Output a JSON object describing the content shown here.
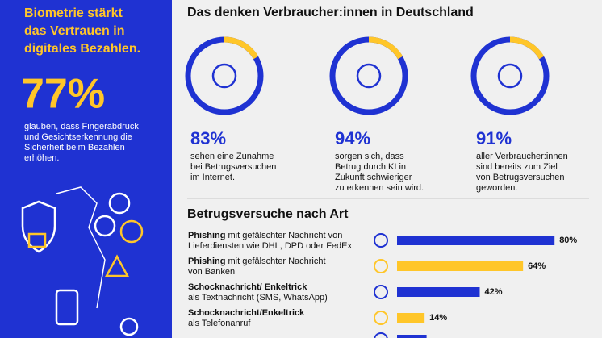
{
  "sidebar": {
    "headline": [
      "Biometrie stärkt",
      "das Vertrauen in",
      "digitales Bezahlen."
    ],
    "stat": "77%",
    "text": [
      "glauben, dass Fingerabdruck",
      "und Gesichtserkennung die",
      "Sicherheit beim Bezahlen",
      "erhöhen."
    ]
  },
  "survey": {
    "title": "Das denken Verbraucher:innen in Deutschland",
    "items": [
      {
        "stat": "83%",
        "text": [
          "sehen eine Zunahme",
          "bei Betrugsversuchen",
          "im Internet."
        ]
      },
      {
        "stat": "94%",
        "text": [
          "sorgen sich, dass",
          "Betrug durch KI in",
          "Zukunft schwieriger",
          "zu erkennen sein wird."
        ]
      },
      {
        "stat": "91%",
        "text": [
          "aller Verbraucher:innen",
          "sind bereits zum Ziel",
          "von Betrugsversuchen",
          "geworden."
        ]
      }
    ]
  },
  "chart_data": {
    "type": "bar",
    "title": "Betrugsversuche nach Art",
    "categories": [
      "Phishing",
      "Phishing",
      "Schocknachricht/ Enkeltrick",
      "Schocknachricht/Enkeltrick",
      null
    ],
    "descriptions": [
      [
        "mit gefälschter Nachricht von",
        "Lieferdiensten wie DHL, DPD oder FedEx"
      ],
      [
        "mit gefälschter Nachricht",
        "von Banken"
      ],
      [
        null,
        "als Textnachricht (SMS, WhatsApp)"
      ],
      [
        null,
        "als Telefonanruf"
      ],
      null
    ],
    "values": [
      80,
      64,
      42,
      14,
      15
    ],
    "value_labels": [
      "80%",
      "64%",
      "42%",
      "14%",
      null
    ],
    "colors": [
      "#1f32d2",
      "#ffc629",
      "#1f32d2",
      "#ffc629",
      "#1f32d2"
    ]
  }
}
